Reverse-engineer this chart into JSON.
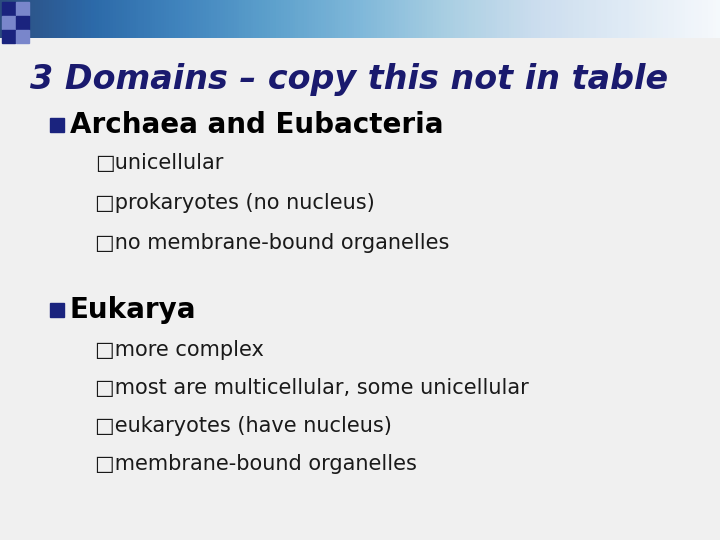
{
  "title": "3 Domains – copy this not in table",
  "title_color": "#1a1a6e",
  "title_fontsize": 24,
  "title_bold": true,
  "background_color": "#f0f0f0",
  "bullet1_text": "Archaea and Eubacteria",
  "bullet1_color": "#000000",
  "bullet1_fontsize": 20,
  "bullet1_bold": true,
  "bullet1_square_color": "#1a237e",
  "sub_bullets_1": [
    "□unicellular",
    "□prokaryotes (no nucleus)",
    "□no membrane-bound organelles"
  ],
  "bullet2_text": "Eukarya",
  "bullet2_color": "#000000",
  "bullet2_fontsize": 20,
  "bullet2_bold": true,
  "bullet2_square_color": "#1a237e",
  "sub_bullets_2": [
    "□more complex",
    "□most are multicellular, some unicellular",
    "□eukaryotes (have nucleus)",
    "□membrane-bound organelles"
  ],
  "sub_bullet_fontsize": 15,
  "sub_bullet_color": "#1a1a1a",
  "gradient_left_color": "#1a237e",
  "gradient_right_color": "#e8eaf6"
}
